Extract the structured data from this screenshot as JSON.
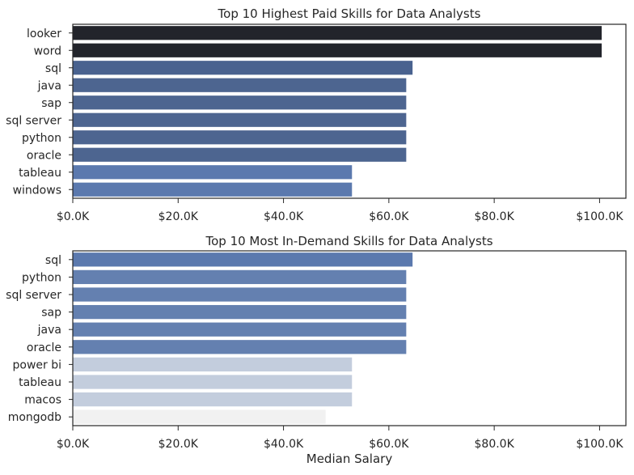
{
  "chart_data": [
    {
      "type": "bar",
      "orientation": "horizontal",
      "title": "Top 10 Highest Paid Skills for Data Analysts",
      "xlabel": "",
      "ylabel": "",
      "xlim": [
        0,
        105000
      ],
      "xticks": [
        0,
        20000,
        40000,
        60000,
        80000,
        100000
      ],
      "xtick_labels": [
        "$0.0K",
        "$20.0K",
        "$40.0K",
        "$60.0K",
        "$80.0K",
        "$100.0K"
      ],
      "categories": [
        "looker",
        "word",
        "sql",
        "java",
        "sap",
        "sql server",
        "python",
        "oracle",
        "tableau",
        "windows"
      ],
      "values": [
        100400,
        100400,
        64500,
        63300,
        63300,
        63300,
        63300,
        63300,
        53000,
        53000
      ],
      "colors": [
        "#22242b",
        "#22242b",
        "#49628f",
        "#4d6590",
        "#4d6590",
        "#4d6590",
        "#4d6590",
        "#4d6590",
        "#5b79ae",
        "#5b79ae"
      ],
      "grid": false,
      "legend": "none"
    },
    {
      "type": "bar",
      "orientation": "horizontal",
      "title": "Top 10 Most In-Demand Skills for Data Analysts",
      "xlabel": "Median Salary",
      "ylabel": "",
      "xlim": [
        0,
        105000
      ],
      "xticks": [
        0,
        20000,
        40000,
        60000,
        80000,
        100000
      ],
      "xtick_labels": [
        "$0.0K",
        "$20.0K",
        "$40.0K",
        "$60.0K",
        "$80.0K",
        "$100.0K"
      ],
      "categories": [
        "sql",
        "python",
        "sql server",
        "sap",
        "java",
        "oracle",
        "power bi",
        "tableau",
        "macos",
        "mongodb"
      ],
      "values": [
        64500,
        63300,
        63300,
        63300,
        63300,
        63300,
        53000,
        53000,
        53000,
        48000
      ],
      "colors": [
        "#5b79ae",
        "#6480b0",
        "#6480b0",
        "#6480b0",
        "#6480b0",
        "#6480b0",
        "#c3cddd",
        "#c3cddd",
        "#c3cddd",
        "#f1f1f1"
      ],
      "grid": false,
      "legend": "none"
    }
  ]
}
